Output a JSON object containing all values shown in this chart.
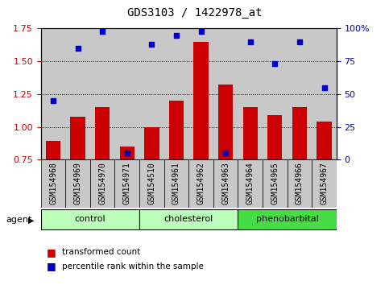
{
  "title": "GDS3103 / 1422978_at",
  "samples": [
    "GSM154968",
    "GSM154969",
    "GSM154970",
    "GSM154971",
    "GSM154510",
    "GSM154961",
    "GSM154962",
    "GSM154963",
    "GSM154964",
    "GSM154965",
    "GSM154966",
    "GSM154967"
  ],
  "bar_values": [
    0.89,
    1.08,
    1.15,
    0.85,
    1.0,
    1.2,
    1.65,
    1.32,
    1.15,
    1.09,
    1.15,
    1.04
  ],
  "dot_values": [
    45,
    85,
    98,
    5,
    88,
    95,
    98,
    5,
    90,
    73,
    90,
    55
  ],
  "bar_color": "#cc0000",
  "dot_color": "#0000cc",
  "ylim_left": [
    0.75,
    1.75
  ],
  "ylim_right": [
    0,
    100
  ],
  "yticks_left": [
    0.75,
    1.0,
    1.25,
    1.5,
    1.75
  ],
  "yticks_right": [
    0,
    25,
    50,
    75,
    100
  ],
  "ytick_labels_right": [
    "0",
    "25",
    "50",
    "75",
    "100%"
  ],
  "groups": [
    {
      "label": "control",
      "start": 0,
      "end": 4,
      "color": "#bbffbb"
    },
    {
      "label": "cholesterol",
      "start": 4,
      "end": 8,
      "color": "#bbffbb"
    },
    {
      "label": "phenobarbital",
      "start": 8,
      "end": 12,
      "color": "#44dd44"
    }
  ],
  "agent_label": "agent",
  "legend_bar_label": "transformed count",
  "legend_dot_label": "percentile rank within the sample",
  "bar_bottom": 0.75,
  "sample_bg_color": "#c8c8c8",
  "title_fontsize": 10,
  "label_fontsize": 7,
  "tick_fontsize": 8
}
